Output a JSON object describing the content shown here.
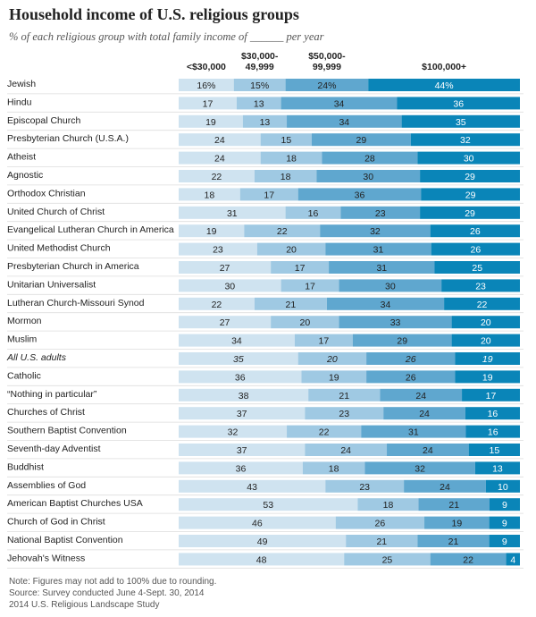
{
  "title": "Household income of U.S. religious groups",
  "subtitle": "% of each religious group with total family income of ______ per year",
  "colors": [
    "#cfe3f0",
    "#9fc9e3",
    "#5fa7cf",
    "#0a85b8"
  ],
  "chart_data": {
    "type": "bar",
    "stacked": true,
    "orientation": "horizontal",
    "title": "Household income of U.S. religious groups",
    "xlim": [
      0,
      100
    ],
    "legend": [
      "<$30,000",
      "$30,000-49,999",
      "$50,000-99,999",
      "$100,000+"
    ],
    "categories": [
      "Jewish",
      "Hindu",
      "Episcopal Church",
      "Presbyterian Church (U.S.A.)",
      "Atheist",
      "Agnostic",
      "Orthodox Christian",
      "United Church of Christ",
      "Evangelical Lutheran Church in America",
      "United Methodist Church",
      "Presbyterian Church in America",
      "Unitarian Universalist",
      "Lutheran Church-Missouri Synod",
      "Mormon",
      "Muslim",
      "All U.S. adults",
      "Catholic",
      "“Nothing in particular”",
      "Churches of Christ",
      "Southern Baptist Convention",
      "Seventh-day Adventist",
      "Buddhist",
      "Assemblies of God",
      "American Baptist Churches USA",
      "Church of God in Christ",
      "National Baptist Convention",
      "Jehovah's Witness"
    ],
    "series": [
      {
        "name": "<$30,000",
        "values": [
          16,
          17,
          19,
          24,
          24,
          22,
          18,
          31,
          19,
          23,
          27,
          30,
          22,
          27,
          34,
          35,
          36,
          38,
          37,
          32,
          37,
          36,
          43,
          53,
          46,
          49,
          48
        ]
      },
      {
        "name": "$30,000-49,999",
        "values": [
          15,
          13,
          13,
          15,
          18,
          18,
          17,
          16,
          22,
          20,
          17,
          17,
          21,
          20,
          17,
          20,
          19,
          21,
          23,
          22,
          24,
          18,
          23,
          18,
          26,
          21,
          25
        ]
      },
      {
        "name": "$50,000-99,999",
        "values": [
          24,
          34,
          34,
          29,
          28,
          30,
          36,
          23,
          32,
          31,
          31,
          30,
          34,
          33,
          29,
          26,
          26,
          24,
          24,
          31,
          24,
          32,
          24,
          21,
          19,
          21,
          22
        ]
      },
      {
        "name": "$100,000+",
        "values": [
          44,
          36,
          35,
          32,
          30,
          29,
          29,
          29,
          26,
          26,
          25,
          23,
          22,
          20,
          20,
          19,
          19,
          17,
          16,
          16,
          15,
          13,
          10,
          9,
          9,
          9,
          4
        ]
      }
    ],
    "value_labels": [
      [
        "16%",
        "15%",
        "24%",
        "44%"
      ]
    ]
  },
  "notes": [
    "Note: Figures may not add to 100% due to rounding.",
    "Source: Survey conducted June 4-Sept. 30, 2014",
    "2014 U.S. Religious Landscape Study"
  ]
}
